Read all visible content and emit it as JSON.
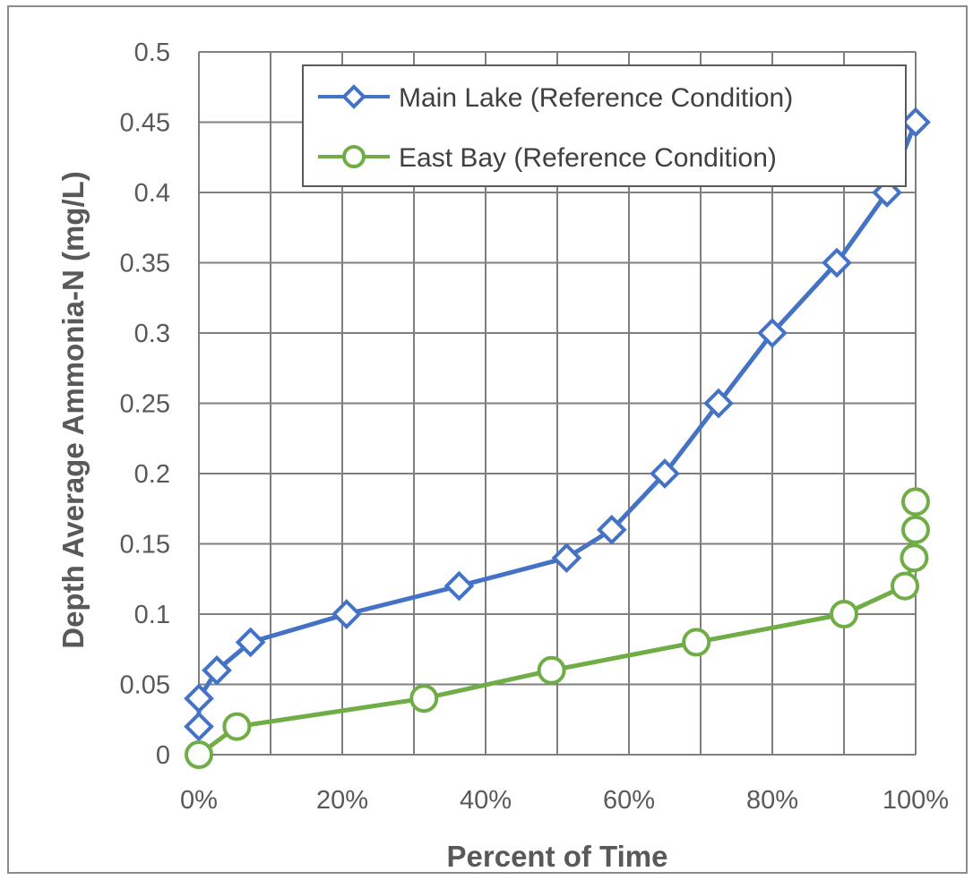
{
  "chart_data": {
    "type": "line",
    "xlabel": "Percent of Time",
    "ylabel": "Depth Average Ammonia-N (mg/L)",
    "xlim": [
      0,
      100
    ],
    "ylim": [
      0,
      0.5
    ],
    "x_ticks": [
      "0%",
      "20%",
      "40%",
      "60%",
      "80%",
      "100%"
    ],
    "y_ticks": [
      "0",
      "0.05",
      "0.1",
      "0.15",
      "0.2",
      "0.25",
      "0.3",
      "0.35",
      "0.4",
      "0.45",
      "0.5"
    ],
    "grid": true,
    "legend_position": "top-right",
    "series": [
      {
        "name": "Main Lake (Reference Condition)",
        "color": "#4472c4",
        "marker": "diamond",
        "x": [
          0,
          0,
          2.5,
          7.2,
          20.6,
          36.3,
          51.3,
          57.6,
          65.0,
          72.5,
          80.0,
          89.0,
          96.0,
          100
        ],
        "y": [
          0.02,
          0.04,
          0.06,
          0.08,
          0.1,
          0.12,
          0.14,
          0.16,
          0.2,
          0.25,
          0.3,
          0.35,
          0.4,
          0.45
        ]
      },
      {
        "name": "East Bay (Reference Condition)",
        "color": "#70ad47",
        "marker": "circle",
        "x": [
          0,
          5.3,
          31.4,
          49.2,
          69.4,
          90.0,
          98.5,
          99.8,
          100,
          100
        ],
        "y": [
          0.0,
          0.02,
          0.04,
          0.06,
          0.08,
          0.1,
          0.12,
          0.14,
          0.16,
          0.18
        ]
      }
    ]
  }
}
